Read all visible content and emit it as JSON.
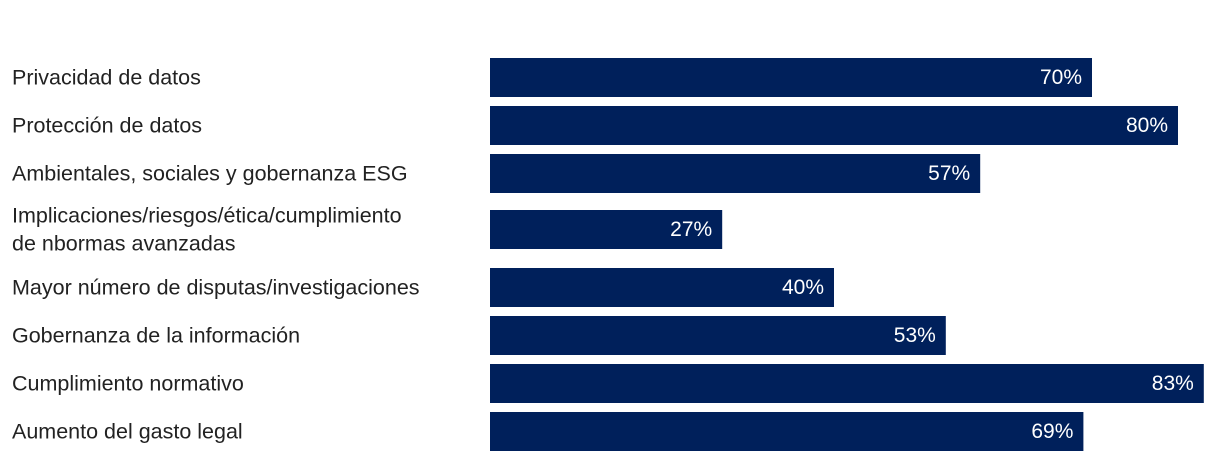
{
  "chart_data": {
    "type": "bar",
    "orientation": "horizontal",
    "title": "",
    "xlabel": "",
    "ylabel": "",
    "xlim": [
      0,
      100
    ],
    "grid": false,
    "bar_color": "#00205b",
    "label_color": "#ffffff",
    "categories": [
      [
        "Privacidad de datos"
      ],
      [
        "Protección de datos"
      ],
      [
        "Ambientales, sociales y gobernanza ESG"
      ],
      [
        "Implicaciones/riesgos/ética/cumplimiento",
        "de nbormas avanzadas"
      ],
      [
        "Mayor número de disputas/investigaciones"
      ],
      [
        "Gobernanza de la información"
      ],
      [
        "Cumplimiento normativo"
      ],
      [
        "Aumento del gasto legal"
      ]
    ],
    "values": [
      70,
      80,
      57,
      27,
      40,
      53,
      83,
      69
    ],
    "value_labels": [
      "70%",
      "80%",
      "57%",
      "27%",
      "40%",
      "53%",
      "83%",
      "69%"
    ]
  }
}
